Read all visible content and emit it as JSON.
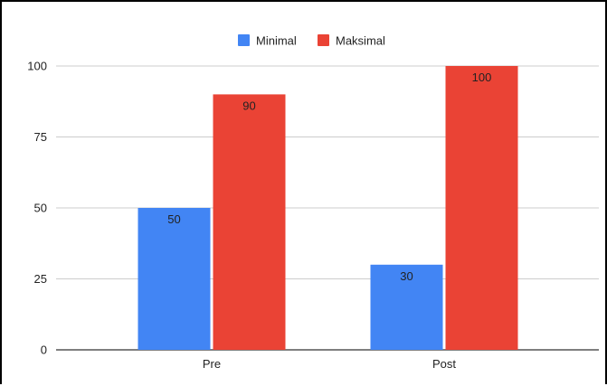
{
  "chart_data": {
    "type": "bar",
    "categories": [
      "Pre",
      "Post"
    ],
    "series": [
      {
        "name": "Minimal",
        "values": [
          50,
          30
        ],
        "color": "#4285f4"
      },
      {
        "name": "Maksimal",
        "values": [
          90,
          100
        ],
        "color": "#ea4335"
      }
    ],
    "ylim": [
      0,
      100
    ],
    "yticks": [
      0,
      25,
      50,
      75,
      100
    ],
    "grid": true,
    "legend_position": "top-center",
    "data_labels": true
  }
}
